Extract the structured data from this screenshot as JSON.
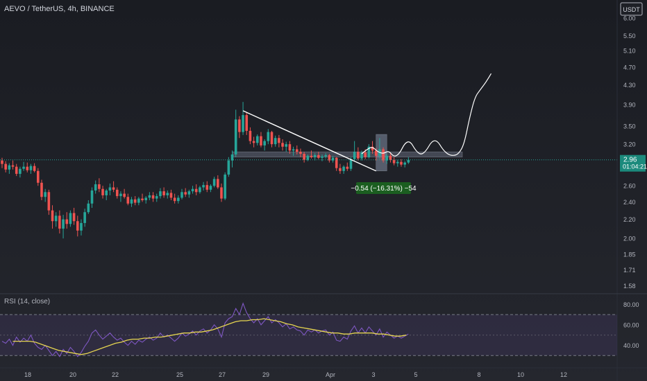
{
  "header": {
    "symbol_line": "AEVO / TetherUS, 4h, BINANCE",
    "currency_button": "USDT"
  },
  "colors": {
    "background_top": "#1a1c22",
    "background_bottom": "#25272e",
    "up": "#26a69a",
    "down": "#ef5350",
    "axis_text": "#b2b5be",
    "rsi_line": "#7e57c2",
    "rsi_ma": "#e6d550",
    "rsi_band": "#7e57c2",
    "price_label_bg": "#1b8a7c",
    "annotation": "#ffffff",
    "measure_bg": "#1b5e20"
  },
  "price_axis": {
    "scale": "log",
    "ticks": [
      "6.00",
      "5.50",
      "5.10",
      "4.70",
      "4.30",
      "3.90",
      "3.50",
      "3.20",
      "2.96",
      "2.60",
      "2.40",
      "2.20",
      "2.00",
      "1.85",
      "1.71",
      "1.58"
    ]
  },
  "current_price": {
    "value": 2.96,
    "label": "2.96",
    "countdown": "01:04:21"
  },
  "time_axis": {
    "ticks": [
      "18",
      "20",
      "22",
      "25",
      "27",
      "29",
      "Apr",
      "3",
      "5",
      "8",
      "10",
      "12"
    ]
  },
  "measure_label": {
    "text": "−0.54 (−16.31%) −54"
  },
  "rsi": {
    "title": "RSI (14, close)",
    "ticks": [
      "80.00",
      "60.00",
      "40.00"
    ],
    "upper_band": 70,
    "middle_band": 50,
    "lower_band": 30,
    "range": [
      20,
      85
    ]
  },
  "chart_data": {
    "type": "candlestick",
    "ylim": [
      1.55,
      6.3
    ],
    "candles": [
      [
        2.95,
        2.99,
        2.84,
        2.9
      ],
      [
        2.9,
        2.94,
        2.78,
        2.82
      ],
      [
        2.82,
        2.91,
        2.76,
        2.88
      ],
      [
        2.88,
        2.95,
        2.82,
        2.86
      ],
      [
        2.86,
        2.9,
        2.73,
        2.76
      ],
      [
        2.76,
        2.86,
        2.71,
        2.83
      ],
      [
        2.83,
        2.93,
        2.8,
        2.86
      ],
      [
        2.86,
        2.92,
        2.78,
        2.81
      ],
      [
        2.81,
        2.9,
        2.76,
        2.87
      ],
      [
        2.87,
        2.91,
        2.78,
        2.8
      ],
      [
        2.8,
        2.84,
        2.6,
        2.64
      ],
      [
        2.64,
        2.68,
        2.42,
        2.46
      ],
      [
        2.46,
        2.56,
        2.4,
        2.52
      ],
      [
        2.52,
        2.55,
        2.25,
        2.3
      ],
      [
        2.3,
        2.36,
        2.1,
        2.18
      ],
      [
        2.18,
        2.28,
        2.12,
        2.24
      ],
      [
        2.24,
        2.3,
        2.05,
        2.1
      ],
      [
        2.1,
        2.25,
        2.0,
        2.2
      ],
      [
        2.2,
        2.28,
        2.1,
        2.15
      ],
      [
        2.15,
        2.3,
        2.12,
        2.27
      ],
      [
        2.27,
        2.33,
        2.14,
        2.18
      ],
      [
        2.18,
        2.24,
        2.02,
        2.08
      ],
      [
        2.08,
        2.2,
        2.03,
        2.16
      ],
      [
        2.16,
        2.32,
        2.12,
        2.28
      ],
      [
        2.28,
        2.42,
        2.26,
        2.38
      ],
      [
        2.38,
        2.58,
        2.33,
        2.54
      ],
      [
        2.54,
        2.67,
        2.5,
        2.62
      ],
      [
        2.62,
        2.7,
        2.52,
        2.56
      ],
      [
        2.56,
        2.6,
        2.44,
        2.48
      ],
      [
        2.48,
        2.56,
        2.42,
        2.54
      ],
      [
        2.54,
        2.63,
        2.48,
        2.58
      ],
      [
        2.58,
        2.66,
        2.52,
        2.55
      ],
      [
        2.55,
        2.58,
        2.44,
        2.47
      ],
      [
        2.47,
        2.53,
        2.4,
        2.5
      ],
      [
        2.5,
        2.56,
        2.44,
        2.46
      ],
      [
        2.46,
        2.5,
        2.36,
        2.38
      ],
      [
        2.38,
        2.46,
        2.34,
        2.43
      ],
      [
        2.43,
        2.47,
        2.36,
        2.39
      ],
      [
        2.39,
        2.46,
        2.36,
        2.44
      ],
      [
        2.44,
        2.5,
        2.4,
        2.42
      ],
      [
        2.42,
        2.47,
        2.38,
        2.45
      ],
      [
        2.45,
        2.52,
        2.42,
        2.48
      ],
      [
        2.48,
        2.52,
        2.4,
        2.44
      ],
      [
        2.44,
        2.5,
        2.4,
        2.47
      ],
      [
        2.47,
        2.57,
        2.44,
        2.53
      ],
      [
        2.53,
        2.58,
        2.45,
        2.48
      ],
      [
        2.48,
        2.54,
        2.44,
        2.51
      ],
      [
        2.51,
        2.55,
        2.42,
        2.45
      ],
      [
        2.45,
        2.5,
        2.38,
        2.41
      ],
      [
        2.41,
        2.48,
        2.38,
        2.45
      ],
      [
        2.45,
        2.56,
        2.43,
        2.52
      ],
      [
        2.52,
        2.57,
        2.46,
        2.49
      ],
      [
        2.49,
        2.55,
        2.45,
        2.53
      ],
      [
        2.53,
        2.6,
        2.5,
        2.56
      ],
      [
        2.56,
        2.62,
        2.48,
        2.52
      ],
      [
        2.52,
        2.6,
        2.5,
        2.58
      ],
      [
        2.58,
        2.65,
        2.54,
        2.61
      ],
      [
        2.61,
        2.66,
        2.52,
        2.55
      ],
      [
        2.55,
        2.62,
        2.52,
        2.6
      ],
      [
        2.6,
        2.72,
        2.58,
        2.69
      ],
      [
        2.69,
        2.74,
        2.56,
        2.58
      ],
      [
        2.58,
        2.63,
        2.4,
        2.44
      ],
      [
        2.44,
        2.78,
        2.42,
        2.75
      ],
      [
        2.75,
        3.0,
        2.72,
        2.95
      ],
      [
        2.95,
        3.1,
        2.85,
        3.04
      ],
      [
        3.04,
        3.8,
        3.0,
        3.62
      ],
      [
        3.62,
        3.68,
        3.3,
        3.4
      ],
      [
        3.4,
        3.95,
        3.35,
        3.7
      ],
      [
        3.7,
        3.75,
        3.35,
        3.42
      ],
      [
        3.42,
        3.48,
        3.2,
        3.25
      ],
      [
        3.25,
        3.32,
        3.15,
        3.22
      ],
      [
        3.22,
        3.36,
        3.18,
        3.33
      ],
      [
        3.33,
        3.4,
        3.15,
        3.18
      ],
      [
        3.18,
        3.28,
        3.1,
        3.25
      ],
      [
        3.25,
        3.45,
        3.2,
        3.4
      ],
      [
        3.4,
        3.42,
        3.15,
        3.2
      ],
      [
        3.2,
        3.34,
        3.16,
        3.3
      ],
      [
        3.3,
        3.35,
        3.15,
        3.22
      ],
      [
        3.22,
        3.28,
        3.1,
        3.16
      ],
      [
        3.16,
        3.24,
        3.08,
        3.2
      ],
      [
        3.2,
        3.25,
        3.05,
        3.1
      ],
      [
        3.1,
        3.16,
        3.02,
        3.12
      ],
      [
        3.12,
        3.18,
        3.04,
        3.08
      ],
      [
        3.08,
        3.13,
        3.0,
        3.05
      ],
      [
        3.05,
        3.08,
        2.92,
        2.96
      ],
      [
        2.96,
        3.04,
        2.94,
        3.02
      ],
      [
        3.02,
        3.1,
        2.98,
        3.0
      ],
      [
        3.0,
        3.06,
        2.95,
        3.03
      ],
      [
        3.03,
        3.08,
        2.97,
        2.99
      ],
      [
        2.99,
        3.04,
        2.94,
        3.01
      ],
      [
        3.01,
        3.06,
        2.98,
        3.03
      ],
      [
        3.03,
        3.05,
        2.92,
        2.95
      ],
      [
        2.95,
        3.02,
        2.92,
        2.99
      ],
      [
        2.99,
        3.0,
        2.8,
        2.84
      ],
      [
        2.84,
        2.9,
        2.76,
        2.8
      ],
      [
        2.8,
        2.88,
        2.76,
        2.86
      ],
      [
        2.86,
        2.92,
        2.8,
        2.83
      ],
      [
        2.83,
        3.0,
        2.8,
        2.97
      ],
      [
        2.97,
        3.25,
        2.94,
        3.08
      ],
      [
        3.08,
        3.15,
        2.95,
        2.98
      ],
      [
        2.98,
        3.1,
        2.95,
        3.07
      ],
      [
        3.07,
        3.12,
        2.97,
        3.0
      ],
      [
        3.0,
        3.2,
        2.98,
        3.16
      ],
      [
        3.16,
        3.25,
        3.05,
        3.1
      ],
      [
        3.1,
        3.14,
        2.95,
        3.02
      ],
      [
        3.02,
        3.3,
        2.98,
        3.12
      ],
      [
        3.12,
        3.15,
        2.92,
        2.95
      ],
      [
        2.95,
        3.05,
        2.9,
        3.02
      ],
      [
        3.02,
        3.07,
        2.92,
        2.96
      ],
      [
        2.96,
        3.0,
        2.88,
        2.91
      ],
      [
        2.91,
        2.96,
        2.86,
        2.93
      ],
      [
        2.93,
        2.97,
        2.86,
        2.89
      ],
      [
        2.89,
        2.94,
        2.85,
        2.92
      ],
      [
        2.92,
        3.0,
        2.9,
        2.96
      ]
    ],
    "trendline": {
      "from_candle": 67,
      "from_price": 3.78,
      "to_candle": 104,
      "to_price": 2.8
    },
    "zones": [
      {
        "from_candle": 64,
        "to_candle": 128,
        "low": 3.0,
        "high": 3.08
      },
      {
        "from_candle": 104,
        "to_candle": 107,
        "low": 2.8,
        "high": 3.36
      }
    ],
    "projection_path": [
      [
        100,
        3.05
      ],
      [
        101.5,
        3.12
      ],
      [
        103,
        3.16
      ],
      [
        104.5,
        3.08
      ],
      [
        106,
        3.05
      ],
      [
        107.5,
        3.1
      ],
      [
        109,
        3.0
      ],
      [
        110.5,
        3.05
      ],
      [
        112,
        3.22
      ],
      [
        113.5,
        3.25
      ],
      [
        115,
        3.1
      ],
      [
        116.5,
        3.03
      ],
      [
        118,
        3.1
      ],
      [
        119.5,
        3.25
      ],
      [
        121,
        3.26
      ],
      [
        122.5,
        3.12
      ],
      [
        124,
        3.04
      ],
      [
        125.5,
        3.02
      ],
      [
        127,
        3.05
      ],
      [
        128.5,
        3.2
      ],
      [
        130,
        3.65
      ],
      [
        131.5,
        4.05
      ],
      [
        133,
        4.2
      ],
      [
        134.5,
        4.35
      ],
      [
        136,
        4.55
      ]
    ],
    "rsi_values": [
      44,
      42,
      46,
      40,
      48,
      43,
      47,
      44,
      50,
      42,
      38,
      36,
      40,
      35,
      30,
      34,
      29,
      36,
      32,
      38,
      34,
      29,
      33,
      39,
      44,
      52,
      55,
      50,
      46,
      49,
      52,
      48,
      45,
      47,
      43,
      40,
      44,
      41,
      45,
      43,
      46,
      48,
      45,
      47,
      52,
      48,
      50,
      47,
      44,
      47,
      52,
      49,
      51,
      54,
      50,
      54,
      56,
      52,
      55,
      60,
      56,
      48,
      62,
      66,
      68,
      76,
      70,
      81,
      72,
      66,
      62,
      66,
      60,
      64,
      68,
      62,
      65,
      62,
      58,
      61,
      56,
      58,
      55,
      54,
      50,
      55,
      53,
      55,
      52,
      54,
      55,
      50,
      53,
      45,
      44,
      48,
      46,
      54,
      59,
      52,
      57,
      52,
      58,
      54,
      50,
      56,
      48,
      53,
      50,
      47,
      49,
      47,
      49,
      51
    ],
    "rsi_ma": [
      44,
      44,
      44,
      44,
      43,
      41,
      39,
      37,
      35,
      34,
      33,
      32,
      31,
      32,
      34,
      36,
      38,
      40,
      42,
      43,
      45,
      46,
      46,
      47,
      47,
      48,
      48,
      49,
      50,
      51,
      52,
      52,
      53,
      53,
      54,
      55,
      57,
      59,
      61,
      63,
      64,
      64,
      65,
      65,
      66,
      65,
      64,
      63,
      61,
      60,
      58,
      57,
      56,
      55,
      54,
      53,
      52,
      52,
      51,
      51,
      52,
      52,
      52,
      52,
      51,
      51,
      50,
      49,
      49,
      50
    ],
    "rsi_ma_start_candle": 3
  }
}
